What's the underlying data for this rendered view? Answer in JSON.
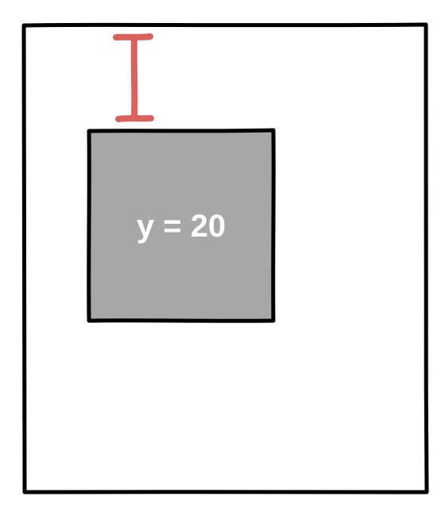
{
  "box": {
    "label": "y = 20"
  },
  "colors": {
    "outline": "#000000",
    "box_fill": "#a6a7a6",
    "marker": "#d9625d",
    "background": "#ffffff"
  }
}
